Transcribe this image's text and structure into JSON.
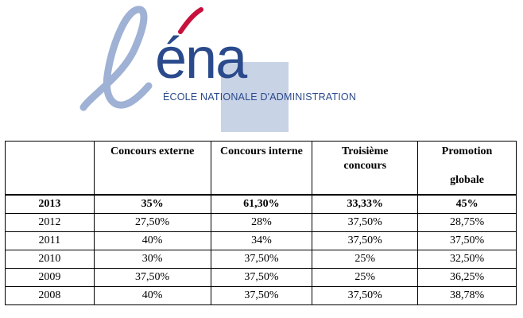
{
  "logo": {
    "wordmark": "éna",
    "subtitle": "ÉCOLE NATIONALE D'ADMINISTRATION",
    "colors": {
      "primary": "#2a4a8c",
      "accent": "#c8103c",
      "light": "#9fb1d4"
    }
  },
  "table": {
    "headers": [
      "",
      "Concours externe",
      "Concours interne",
      "Troisième concours",
      "Promotion globale"
    ],
    "header_lines": {
      "troisieme": [
        "Troisième",
        "concours"
      ],
      "promotion": [
        "Promotion",
        "globale"
      ]
    },
    "rows": [
      [
        "2013",
        "35%",
        "61,30%",
        "33,33%",
        "45%"
      ],
      [
        "2012",
        "27,50%",
        "28%",
        "37,50%",
        "28,75%"
      ],
      [
        "2011",
        "40%",
        "34%",
        "37,50%",
        "37,50%"
      ],
      [
        "2010",
        "30%",
        "37,50%",
        "25%",
        "32,50%"
      ],
      [
        "2009",
        "37,50%",
        "37,50%",
        "25%",
        "36,25%"
      ],
      [
        "2008",
        "40%",
        "37,50%",
        "37,50%",
        "38,78%"
      ]
    ]
  }
}
